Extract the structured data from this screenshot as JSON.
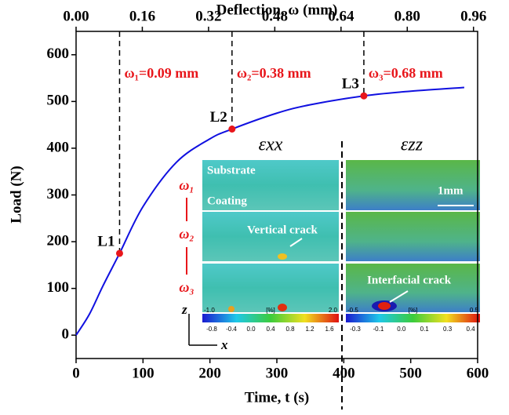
{
  "chart_data": {
    "type": "line",
    "x_label": "Time, t (s)",
    "y_label": "Load (N)",
    "x2_label": "Deflection, ω (mm)",
    "x": [
      0,
      20,
      40,
      65,
      100,
      150,
      200,
      233,
      300,
      350,
      430,
      500,
      580
    ],
    "values": [
      0,
      45,
      105,
      175,
      275,
      370,
      420,
      441,
      475,
      493,
      512,
      522,
      530
    ],
    "color": "#1010e0",
    "xlim": [
      0,
      600
    ],
    "xticks": [
      0,
      100,
      200,
      300,
      400,
      500,
      600
    ],
    "ylim": [
      -50,
      650
    ],
    "yticks": [
      0,
      100,
      200,
      300,
      400,
      500,
      600
    ],
    "x2lim": [
      0,
      0.97
    ],
    "x2ticks": [
      {
        "value": 0,
        "label": "0.00"
      },
      {
        "value": 0.16,
        "label": "0.16"
      },
      {
        "value": 0.32,
        "label": "0.32"
      },
      {
        "value": 0.48,
        "label": "0.48"
      },
      {
        "value": 0.64,
        "label": "0.64"
      },
      {
        "value": 0.8,
        "label": "0.80"
      },
      {
        "value": 0.96,
        "label": "0.96"
      }
    ],
    "points": [
      {
        "label": "L1",
        "x": 65,
        "y": 175,
        "annotation": "ω₁=0.09 mm"
      },
      {
        "label": "L2",
        "x": 233,
        "y": 441,
        "annotation": "ω₂=0.38 mm"
      },
      {
        "label": "L3",
        "x": 430,
        "y": 512,
        "annotation": "ω₃=0.68 mm"
      }
    ],
    "marker_color": "#e8161b",
    "inset": {
      "left_title": "εxx",
      "right_title": "εzz",
      "substrate": "Substrate",
      "coating": "Coating",
      "scale": "1mm",
      "vertical_crack": "Vertical crack",
      "interfacial_crack": "Interfacial crack",
      "steps": [
        "ω₁",
        "ω₂",
        "ω₃"
      ],
      "axis_z": "z",
      "axis_x": "x",
      "left_bar": {
        "min": "-1.0",
        "unit": "[%]",
        "max": "2.0",
        "ticks": [
          "-0.8",
          "-0.4",
          "0.0",
          "0.4",
          "0.8",
          "1.2",
          "1.6"
        ]
      },
      "right_bar": {
        "min": "-0.5",
        "unit": "[%]",
        "max": "0.5",
        "ticks": [
          "-0.3",
          "-0.1",
          "0.0",
          "0.1",
          "0.3",
          "0.4"
        ]
      }
    }
  }
}
